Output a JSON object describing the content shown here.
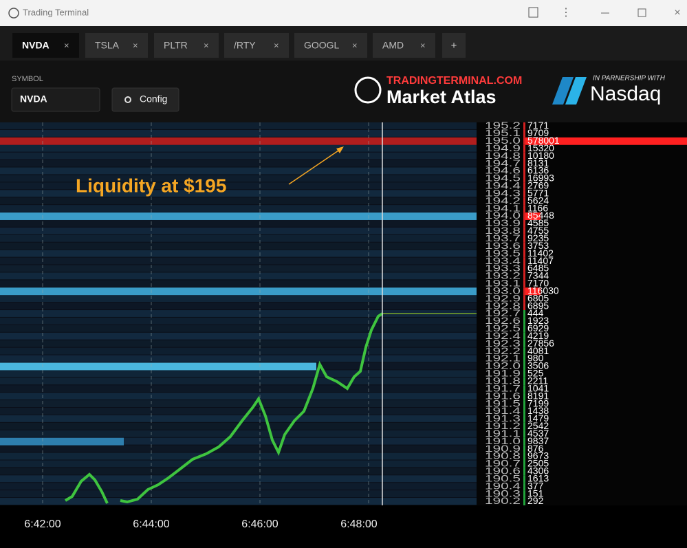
{
  "window": {
    "title": "Trading Terminal"
  },
  "tabs": [
    "NVDA",
    "TSLA",
    "PLTR",
    "/RTY",
    "GOOGL",
    "AMD"
  ],
  "header": {
    "symbol_label": "SYMBOL",
    "symbol_value": "NVDA",
    "config_button": "Config",
    "brand_top": "TRADINGTERMINAL.COM",
    "brand_main": "Market Atlas",
    "partner_note": "IN PARNERSHIP WITH",
    "partner": "Nasdaq"
  },
  "chart": {
    "annotation": "Liquidity at $195",
    "time_labels": [
      "6:42:00",
      "6:44:00",
      "6:46:00",
      "6:48:00"
    ]
  },
  "order_book": {
    "levels": [
      {
        "price": "195.2",
        "size": "7171"
      },
      {
        "price": "195.1",
        "size": "9709"
      },
      {
        "price": "195.0",
        "size": "578001",
        "highlight": true
      },
      {
        "price": "194.9",
        "size": "15320"
      },
      {
        "price": "194.8",
        "size": "10180"
      },
      {
        "price": "194.7",
        "size": "8131"
      },
      {
        "price": "194.6",
        "size": "6136"
      },
      {
        "price": "194.5",
        "size": "16993"
      },
      {
        "price": "194.4",
        "size": "2769"
      },
      {
        "price": "194.3",
        "size": "5771"
      },
      {
        "price": "194.2",
        "size": "5624"
      },
      {
        "price": "194.1",
        "size": "1166"
      },
      {
        "price": "194.0",
        "size": "85448",
        "highlight": true
      },
      {
        "price": "193.9",
        "size": "4585"
      },
      {
        "price": "193.8",
        "size": "4755"
      },
      {
        "price": "193.7",
        "size": "9235"
      },
      {
        "price": "193.6",
        "size": "3753"
      },
      {
        "price": "193.5",
        "size": "11402"
      },
      {
        "price": "193.4",
        "size": "11407"
      },
      {
        "price": "193.3",
        "size": "6485"
      },
      {
        "price": "193.2",
        "size": "7344"
      },
      {
        "price": "193.1",
        "size": "7170"
      },
      {
        "price": "193.0",
        "size": "116030",
        "highlight": true
      },
      {
        "price": "192.9",
        "size": "6805"
      },
      {
        "price": "192.8",
        "size": "6895"
      },
      {
        "price": "192.7",
        "size": "444"
      },
      {
        "price": "192.6",
        "size": "1923"
      },
      {
        "price": "192.5",
        "size": "6929"
      },
      {
        "price": "192.4",
        "size": "4219"
      },
      {
        "price": "192.3",
        "size": "27856"
      },
      {
        "price": "192.2",
        "size": "4081"
      },
      {
        "price": "192.1",
        "size": "980"
      },
      {
        "price": "192.0",
        "size": "3506"
      },
      {
        "price": "191.9",
        "size": "525"
      },
      {
        "price": "191.8",
        "size": "2211"
      },
      {
        "price": "191.7",
        "size": "1041"
      },
      {
        "price": "191.6",
        "size": "8191"
      },
      {
        "price": "191.5",
        "size": "7199"
      },
      {
        "price": "191.4",
        "size": "1438"
      },
      {
        "price": "191.3",
        "size": "1479"
      },
      {
        "price": "191.2",
        "size": "2542"
      },
      {
        "price": "191.1",
        "size": "4537"
      },
      {
        "price": "191.0",
        "size": "9837"
      },
      {
        "price": "190.9",
        "size": "876"
      },
      {
        "price": "190.8",
        "size": "9673"
      },
      {
        "price": "190.7",
        "size": "2505"
      },
      {
        "price": "190.6",
        "size": "4306"
      },
      {
        "price": "190.5",
        "size": "1613"
      },
      {
        "price": "190.4",
        "size": "377"
      },
      {
        "price": "190.3",
        "size": "151"
      },
      {
        "price": "190.2",
        "size": "292"
      }
    ]
  }
}
